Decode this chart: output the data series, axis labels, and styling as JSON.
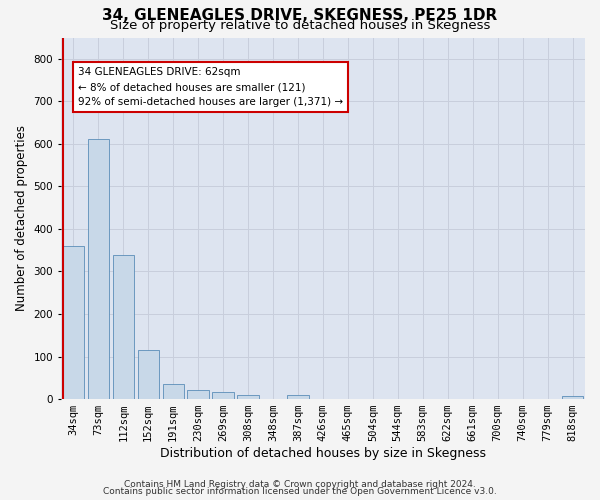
{
  "title1": "34, GLENEAGLES DRIVE, SKEGNESS, PE25 1DR",
  "title2": "Size of property relative to detached houses in Skegness",
  "xlabel": "Distribution of detached houses by size in Skegness",
  "ylabel": "Number of detached properties",
  "bar_labels": [
    "34sqm",
    "73sqm",
    "112sqm",
    "152sqm",
    "191sqm",
    "230sqm",
    "269sqm",
    "308sqm",
    "348sqm",
    "387sqm",
    "426sqm",
    "465sqm",
    "504sqm",
    "544sqm",
    "583sqm",
    "622sqm",
    "661sqm",
    "700sqm",
    "740sqm",
    "779sqm",
    "818sqm"
  ],
  "bar_values": [
    360,
    611,
    338,
    115,
    36,
    21,
    16,
    10,
    0,
    10,
    0,
    0,
    0,
    0,
    0,
    0,
    0,
    0,
    0,
    0,
    8
  ],
  "bar_color": "#c8d8e8",
  "bar_edge_color": "#5b8db8",
  "annotation_text": "34 GLENEAGLES DRIVE: 62sqm\n← 8% of detached houses are smaller (121)\n92% of semi-detached houses are larger (1,371) →",
  "annotation_box_color": "#ffffff",
  "annotation_box_edge": "#cc0000",
  "vline_color": "#cc0000",
  "ylim": [
    0,
    850
  ],
  "yticks": [
    0,
    100,
    200,
    300,
    400,
    500,
    600,
    700,
    800
  ],
  "grid_color": "#c8cedc",
  "bg_color": "#dde4f0",
  "fig_bg_color": "#f4f4f4",
  "footer1": "Contains HM Land Registry data © Crown copyright and database right 2024.",
  "footer2": "Contains public sector information licensed under the Open Government Licence v3.0.",
  "title1_fontsize": 11,
  "title2_fontsize": 9.5,
  "xlabel_fontsize": 9,
  "ylabel_fontsize": 8.5,
  "annot_fontsize": 7.5,
  "tick_fontsize": 7.5,
  "footer_fontsize": 6.5
}
